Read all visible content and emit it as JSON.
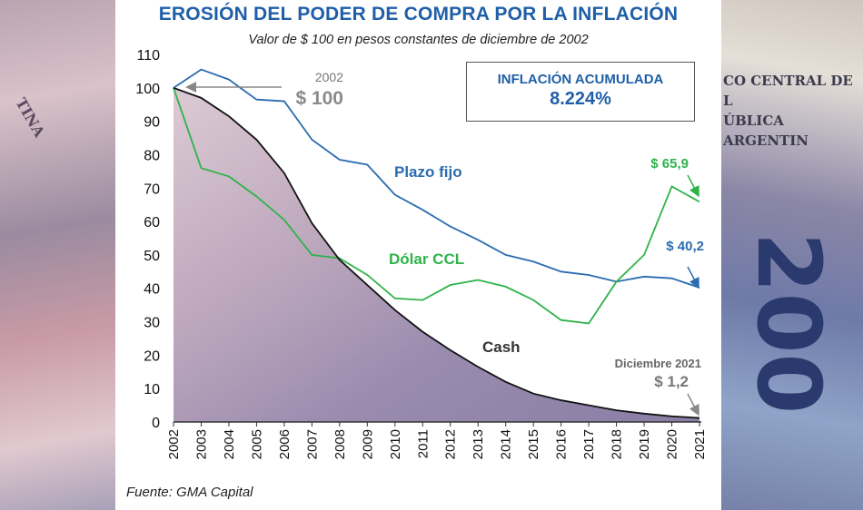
{
  "header": {
    "title": "EROSIÓN DEL PODER DE COMPRA POR LA INFLACIÓN",
    "subtitle": "Valor de $ 100 en pesos constantes de diciembre de 2002"
  },
  "inflation_box": {
    "label": "INFLACIÓN ACUMULADA",
    "value": "8.224%"
  },
  "annotations": {
    "start_year": "2002",
    "start_value": "$ 100",
    "end_date": "Diciembre 2021",
    "cash_end": "$ 1,2",
    "ccl_end": "$ 65,9",
    "plazo_end": "$ 40,2"
  },
  "source": "Fuente: GMA Capital",
  "background": {
    "left_bill_text": "TINA",
    "right_bill_lines": [
      "CO CENTRAL DE L",
      "ÚBLICA ARGENTIN"
    ],
    "right_bill_number": "200"
  },
  "colors": {
    "title": "#1f5fa8",
    "plazo_fijo": "#2b6cb0",
    "dolar_ccl": "#2eb34a",
    "cash": "#111111"
  },
  "chart_data": {
    "type": "line",
    "title": "EROSIÓN DEL PODER DE COMPRA POR LA INFLACIÓN",
    "subtitle": "Valor de $ 100 en pesos constantes de diciembre de 2002",
    "x": [
      "2002",
      "2003",
      "2004",
      "2005",
      "2006",
      "2007",
      "2008",
      "2009",
      "2010",
      "2011",
      "2012",
      "2013",
      "2014",
      "2015",
      "2016",
      "2017",
      "2018",
      "2019",
      "2020",
      "2021"
    ],
    "ylim": [
      0,
      110
    ],
    "yticks": [
      0,
      10,
      20,
      30,
      40,
      50,
      60,
      70,
      80,
      90,
      100,
      110
    ],
    "grid": false,
    "series": [
      {
        "name": "Plazo fijo",
        "color": "#2b6cb0",
        "values": [
          100,
          105.5,
          102.5,
          96.5,
          96,
          84.5,
          78.5,
          77,
          68,
          63.5,
          58.5,
          54.5,
          50,
          48,
          45,
          44,
          42,
          43.5,
          43,
          40.2
        ]
      },
      {
        "name": "Dólar CCL",
        "color": "#2eb34a",
        "values": [
          100,
          76,
          73.5,
          67.5,
          60.5,
          50,
          49,
          44,
          37,
          36.5,
          41,
          42.5,
          40.5,
          36.5,
          30.5,
          29.5,
          42,
          50,
          70.5,
          65.9
        ]
      },
      {
        "name": "Cash",
        "color": "#111111",
        "values": [
          100,
          97,
          91.5,
          84.5,
          74.5,
          59.5,
          48.5,
          41,
          33.5,
          27,
          21.5,
          16.5,
          12,
          8.5,
          6.5,
          5,
          3.5,
          2.5,
          1.7,
          1.2
        ]
      }
    ]
  }
}
